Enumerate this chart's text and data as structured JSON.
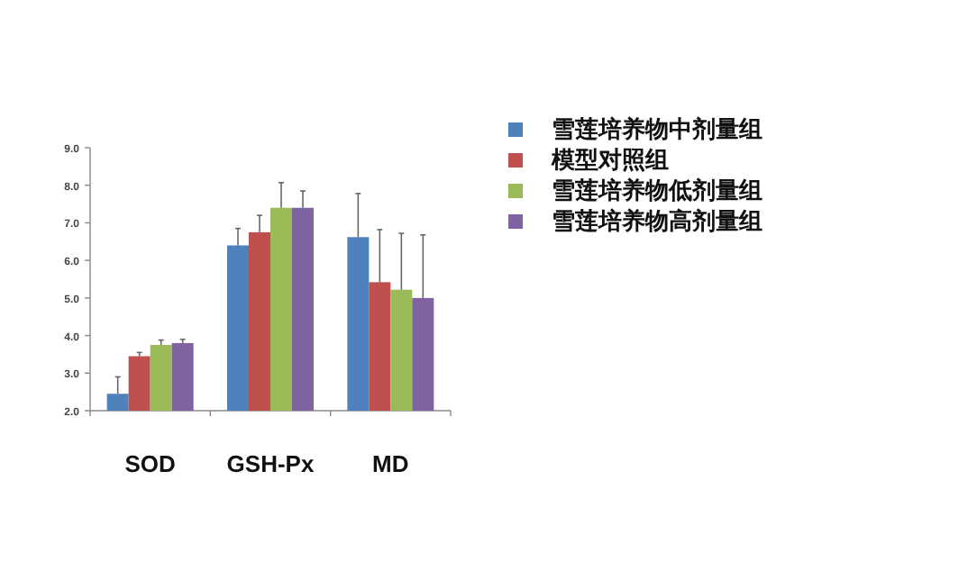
{
  "chart_data": {
    "type": "bar",
    "categories": [
      "SOD",
      "GSH-Px",
      "MD"
    ],
    "series": [
      {
        "name": "雪莲培养物中剂量组",
        "color": "#4f81bd",
        "values": [
          2.45,
          6.4,
          6.62
        ],
        "errors": [
          [
            2.45,
            2.9
          ],
          [
            6.4,
            6.85
          ],
          [
            6.62,
            7.78
          ]
        ]
      },
      {
        "name": "模型对照组",
        "color": "#c0504d",
        "values": [
          3.45,
          6.75,
          5.42
        ],
        "errors": [
          [
            3.45,
            3.55
          ],
          [
            6.75,
            7.2
          ],
          [
            5.42,
            6.82
          ]
        ]
      },
      {
        "name": "雪莲培养物低剂量组",
        "color": "#9bbb59",
        "values": [
          3.75,
          7.4,
          5.22
        ],
        "errors": [
          [
            3.75,
            3.88
          ],
          [
            7.4,
            8.07
          ],
          [
            5.22,
            6.72
          ]
        ]
      },
      {
        "name": "雪莲培养物高剂量组",
        "color": "#8064a2",
        "values": [
          3.8,
          7.4,
          5.0
        ],
        "errors": [
          [
            3.8,
            3.9
          ],
          [
            7.4,
            7.85
          ],
          [
            5.0,
            6.68
          ]
        ]
      }
    ],
    "ylim": [
      2,
      9
    ],
    "yticks": [
      {
        "value": 2,
        "label": "2.0"
      },
      {
        "value": 3,
        "label": "3.0"
      },
      {
        "value": 4,
        "label": "4.0"
      },
      {
        "value": 5,
        "label": "5.0"
      },
      {
        "value": 6,
        "label": "6.0"
      },
      {
        "value": 7,
        "label": "7.0"
      },
      {
        "value": 8,
        "label": "8.0"
      },
      {
        "value": 9,
        "label": "9.0"
      }
    ],
    "grid": false,
    "legend": "right"
  }
}
